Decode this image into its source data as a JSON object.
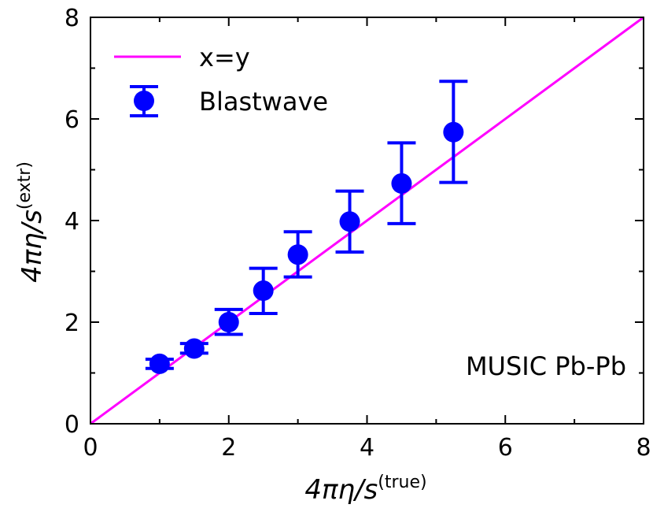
{
  "chart_data": {
    "type": "scatter",
    "xlim": [
      0,
      8
    ],
    "ylim": [
      0,
      8
    ],
    "x_ticks": [
      "0",
      "2",
      "4",
      "6",
      "8"
    ],
    "y_ticks": [
      "0",
      "2",
      "4",
      "6",
      "8"
    ],
    "xlabel": {
      "main": "4πη/s",
      "sup": "(true)"
    },
    "ylabel": {
      "main": "4πη/s",
      "sup": "(extr)"
    },
    "annotation": "MUSIC Pb-Pb",
    "legend_position": "top-left",
    "series": [
      {
        "name": "x=y",
        "kind": "line",
        "color": "#ff00ff",
        "x": [
          0,
          8
        ],
        "y": [
          0,
          8
        ]
      },
      {
        "name": "Blastwave",
        "kind": "errorbar",
        "color": "#0000ff",
        "x": [
          1.0,
          1.5,
          2.0,
          2.5,
          3.0,
          3.75,
          4.5,
          5.25
        ],
        "y": [
          1.18,
          1.48,
          2.0,
          2.62,
          3.33,
          3.98,
          4.73,
          5.74
        ],
        "yerr_low": [
          1.09,
          1.39,
          1.76,
          2.17,
          2.89,
          3.38,
          3.94,
          4.75
        ],
        "yerr_high": [
          1.27,
          1.58,
          2.25,
          3.06,
          3.78,
          4.58,
          5.53,
          6.74
        ]
      }
    ]
  }
}
